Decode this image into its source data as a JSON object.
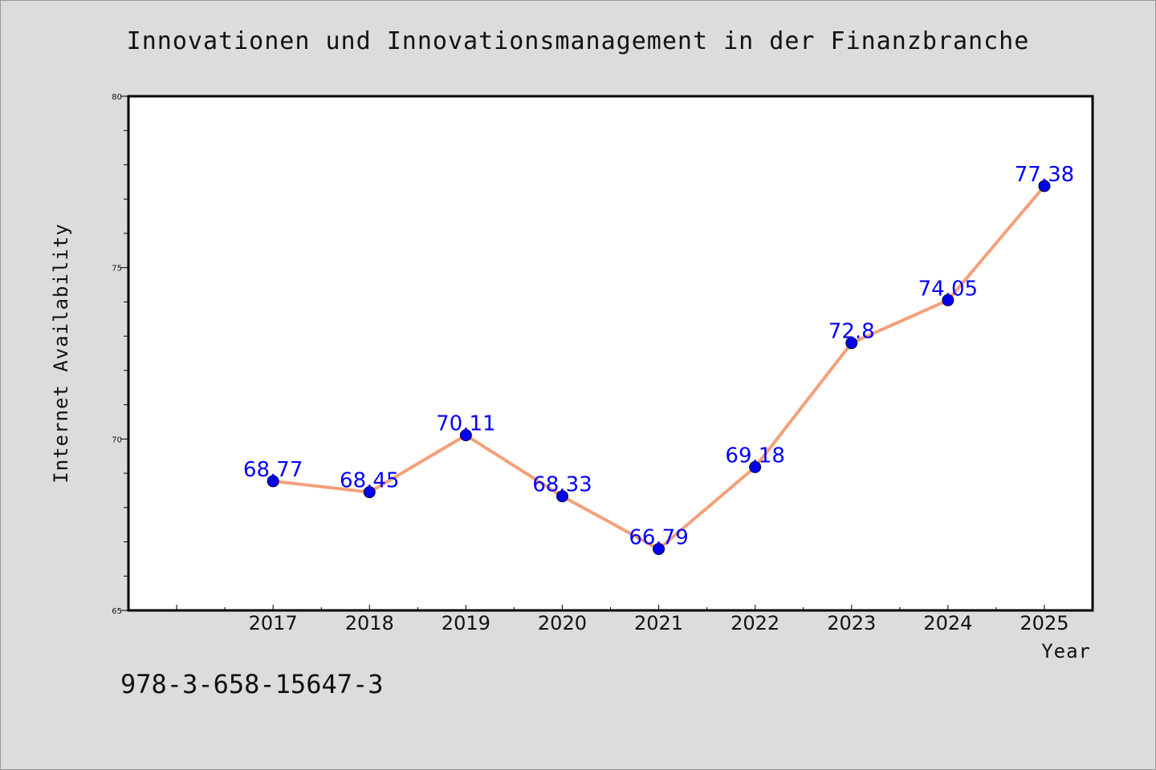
{
  "page": {
    "title": "Innovationen und Innovationsmanagement in der Finanzbranche",
    "footer_code": "978-3-658-15647-3"
  },
  "colors": {
    "background": "#dcdcdc",
    "plot_background": "#ffffff",
    "line": "#f4a07a",
    "marker": "#0000ee",
    "data_label": "#0000ff"
  },
  "chart_data": {
    "type": "line",
    "title": "Innovationen und Innovationsmanagement in der Finanzbranche",
    "xlabel": "Year",
    "ylabel": "Internet Availability",
    "x": [
      "2017",
      "2018",
      "2019",
      "2020",
      "2021",
      "2022",
      "2023",
      "2024",
      "2025"
    ],
    "series": [
      {
        "values": [
          68.77,
          68.45,
          70.11,
          68.33,
          66.79,
          69.18,
          72.8,
          74.05,
          77.38
        ]
      }
    ],
    "data_labels": [
      "68.77",
      "68.45",
      "70.11",
      "68.33",
      "66.79",
      "69.18",
      "72.8",
      "74.05",
      "77.38"
    ],
    "ylim": [
      65,
      80
    ],
    "xlim": [
      2015.5,
      2025.5
    ],
    "y_ticks": [
      65,
      70,
      75,
      80
    ],
    "y_minor_step": 1,
    "grid": false,
    "legend": "none"
  }
}
